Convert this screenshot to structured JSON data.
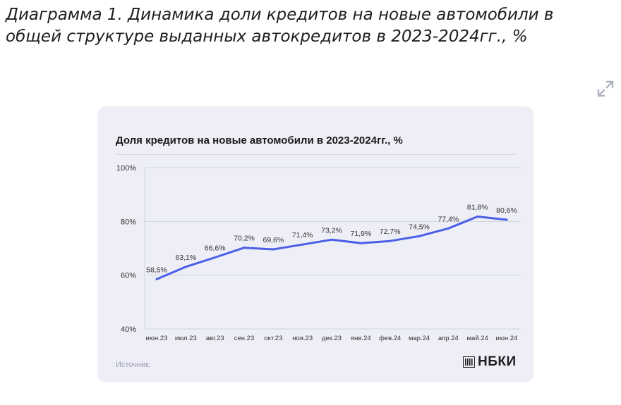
{
  "article": {
    "title": "Диаграмма 1. Динамика доли кредитов на новые автомобили в общей структуре выданных автокредитов в 2023-2024гг., %"
  },
  "expand_icon": "expand-arrows-icon",
  "card": {
    "source_label": "Источник:",
    "logo_text": "НБКИ",
    "logo_icon": "nbki-logo-icon"
  },
  "chart_data": {
    "type": "line",
    "title": "Доля кредитов на новые автомобили в 2023-2024гг., %",
    "categories": [
      "июн.23",
      "июл.23",
      "авг.23",
      "сен.23",
      "окт.23",
      "ноя.23",
      "дек.23",
      "янв.24",
      "фев.24",
      "мар.24",
      "апр.24",
      "май.24",
      "июн.24"
    ],
    "series": [
      {
        "values": [
          58.5,
          63.1,
          66.6,
          70.2,
          69.6,
          71.4,
          73.2,
          71.9,
          72.7,
          74.5,
          77.4,
          81.8,
          80.6
        ],
        "labels": [
          "58,5%",
          "63,1%",
          "66,6%",
          "70,2%",
          "69,6%",
          "71,4%",
          "73,2%",
          "71,9%",
          "72,7%",
          "74,5%",
          "77,4%",
          "81,8%",
          "80,6%"
        ],
        "color": "#4a5ee8"
      }
    ],
    "ylim": [
      40,
      100
    ],
    "yticks": [
      40,
      60,
      80,
      100
    ],
    "ytick_labels": [
      "40%",
      "60%",
      "80%",
      "100%"
    ],
    "grid": true,
    "legend": "none",
    "xlabel": "",
    "ylabel": ""
  }
}
